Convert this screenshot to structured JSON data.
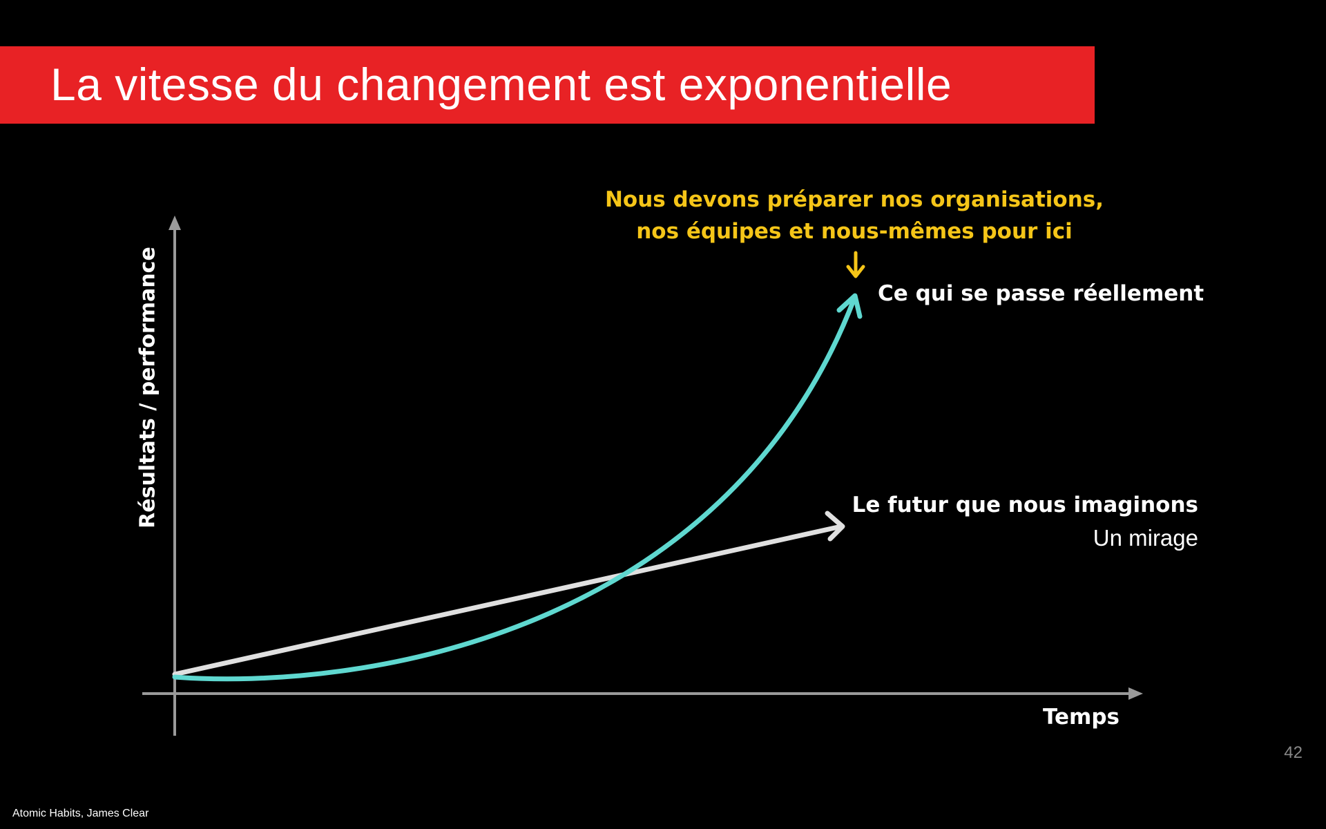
{
  "slide": {
    "title": "La vitesse du changement est exponentielle",
    "page_number": "42",
    "footer": "Atomic Habits, James Clear"
  },
  "diagram": {
    "y_axis_label": "Résultats / performance",
    "x_axis_label": "Temps",
    "callout_line1": "Nous devons préparer nos organisations,",
    "callout_line2": "nos équipes et nous-mêmes pour ici",
    "exponential_label": "Ce qui se passe réellement",
    "linear_label": "Le futur que nous imaginons",
    "linear_sublabel": "Un mirage"
  },
  "colors": {
    "banner": "#e82225",
    "exponential_curve": "#5fd8d0",
    "linear_line": "#e0e0e0",
    "callout": "#f5c518",
    "axes": "#9a9a9a"
  }
}
